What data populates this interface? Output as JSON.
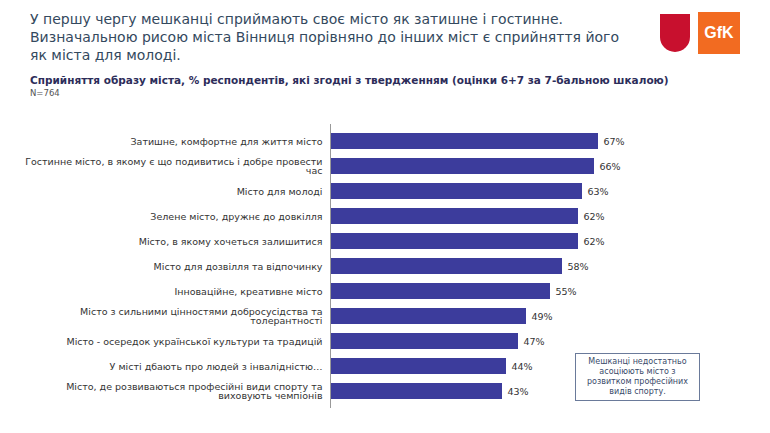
{
  "chart_data": {
    "type": "bar",
    "title": "У першу чергу мешканці сприймають своє місто як затишне і гостинне. Визначальною рисою міста Вінниця порівняно до інших міст є сприйняття його як міста для молоді.",
    "subtitle": "Сприйняття образу міста, % респондентів, які згодні з твердженням (оцінки 6+7 за 7-бальною шкалою)",
    "note": "N=764",
    "logo": "GfK",
    "categories": [
      "Затишне, комфортне для життя місто",
      "Гостинне місто, в якому є що подивитись і добре провести час",
      "Місто для молоді",
      "Зелене місто, дружнє до довкілля",
      "Місто, в якому хочеться залишитися",
      "Місто для дозвілля та відпочинку",
      "Інноваційне, креативне місто",
      "Місто з сильними цінностями добросусідства та толерантності",
      "Місто - осередок української культури та традицій",
      "У місті дбають про людей з інвалідністю…",
      "Місто, де розвиваються професійні види спорту та виховують чемпіонів"
    ],
    "values": [
      67,
      66,
      63,
      62,
      62,
      58,
      55,
      49,
      47,
      44,
      43
    ],
    "value_labels": [
      "67%",
      "66%",
      "63%",
      "62%",
      "62%",
      "58%",
      "55%",
      "49%",
      "47%",
      "44%",
      "43%"
    ],
    "color": "#3c3c9c",
    "orientation": "horizontal",
    "data_labels": true,
    "tick_labels": "y",
    "xlim": [
      0,
      100
    ],
    "annotation": "Мешканці недостатньо асоціюють місто з розвитком професійних видів спорту."
  }
}
